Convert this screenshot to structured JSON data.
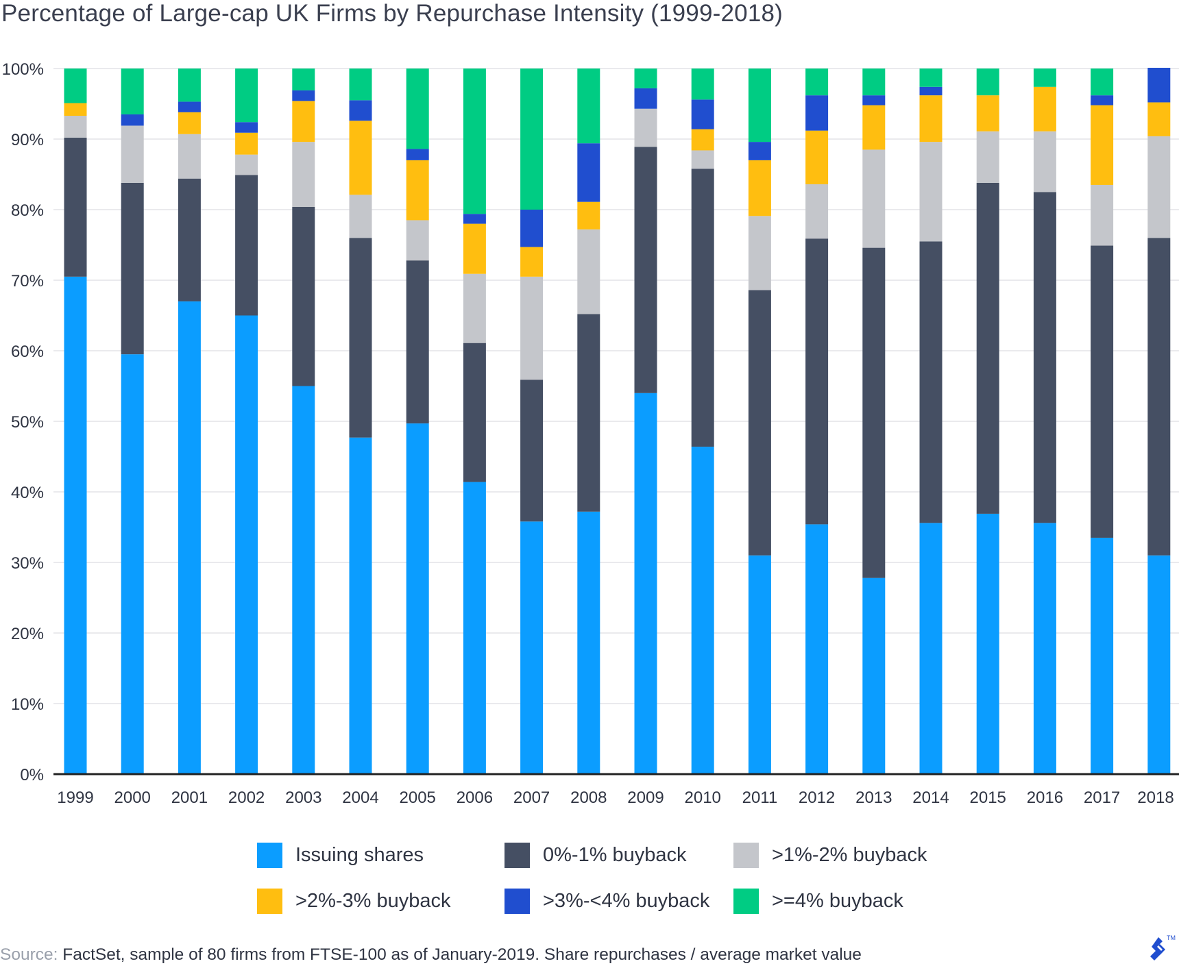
{
  "chart_data": {
    "type": "bar",
    "stacked": true,
    "title": "Percentage of Large-cap UK Firms by Repurchase Intensity (1999-2018)",
    "xlabel": "",
    "ylabel": "",
    "ylim": [
      0,
      100
    ],
    "yticks": [
      "0%",
      "10%",
      "20%",
      "30%",
      "40%",
      "50%",
      "60%",
      "70%",
      "80%",
      "90%",
      "100%"
    ],
    "grid": true,
    "legend_position": "bottom",
    "categories": [
      "1999",
      "2000",
      "2001",
      "2002",
      "2003",
      "2004",
      "2005",
      "2006",
      "2007",
      "2008",
      "2009",
      "2010",
      "2011",
      "2012",
      "2013",
      "2014",
      "2015",
      "2016",
      "2017",
      "2018"
    ],
    "series": [
      {
        "name": "Issuing shares",
        "color": "#0b9dff",
        "values": [
          70.5,
          59.5,
          67,
          65,
          55,
          47.7,
          49.7,
          41.4,
          35.8,
          37.2,
          54,
          46.4,
          31,
          35.4,
          27.8,
          35.6,
          36.9,
          35.6,
          33.5,
          31
        ]
      },
      {
        "name": "0%-1% buyback",
        "color": "#454f63",
        "values": [
          19.7,
          24.3,
          17.4,
          19.9,
          25.4,
          28.3,
          23.1,
          19.7,
          20.1,
          28,
          34.9,
          39.4,
          37.6,
          40.5,
          46.8,
          39.9,
          46.9,
          46.9,
          41.4,
          45
        ]
      },
      {
        "name": ">1%-2% buyback",
        "color": "#c4c6cb",
        "values": [
          3.1,
          8.1,
          6.3,
          2.9,
          9.2,
          6.1,
          5.7,
          9.8,
          14.6,
          12,
          5.4,
          2.6,
          10.5,
          7.7,
          13.9,
          14.1,
          7.3,
          8.6,
          8.6,
          14.4
        ]
      },
      {
        "name": ">2%-3% buyback",
        "color": "#ffbe10",
        "values": [
          1.8,
          0,
          3.1,
          3.1,
          5.8,
          10.5,
          8.5,
          7.1,
          4.2,
          3.9,
          0,
          3,
          7.9,
          7.6,
          6.3,
          6.6,
          5.1,
          6.3,
          11.3,
          4.8
        ]
      },
      {
        "name": ">3%-<4% buyback",
        "color": "#204ecf",
        "values": [
          0,
          1.6,
          1.5,
          1.5,
          1.5,
          2.9,
          1.6,
          1.4,
          5.3,
          8.3,
          2.9,
          4.2,
          2.6,
          5,
          1.4,
          1.2,
          0,
          0,
          1.4,
          4.9
        ]
      },
      {
        "name": ">=4% buyback",
        "color": "#00cc83",
        "values": [
          4.9,
          6.5,
          4.7,
          7.6,
          3.1,
          4.5,
          11.4,
          20.6,
          20,
          10.6,
          2.8,
          4.4,
          10.4,
          3.8,
          3.8,
          2.6,
          3.8,
          2.6,
          3.8,
          0
        ]
      }
    ]
  },
  "source": {
    "prefix": "Source:",
    "text": "FactSet, sample of 80 firms from FTSE-100 as of January-2019. Share repurchases / average market value"
  },
  "logo": {
    "icon": "toptal-logo-icon",
    "color": "#204ecf",
    "trademark": "TM"
  }
}
